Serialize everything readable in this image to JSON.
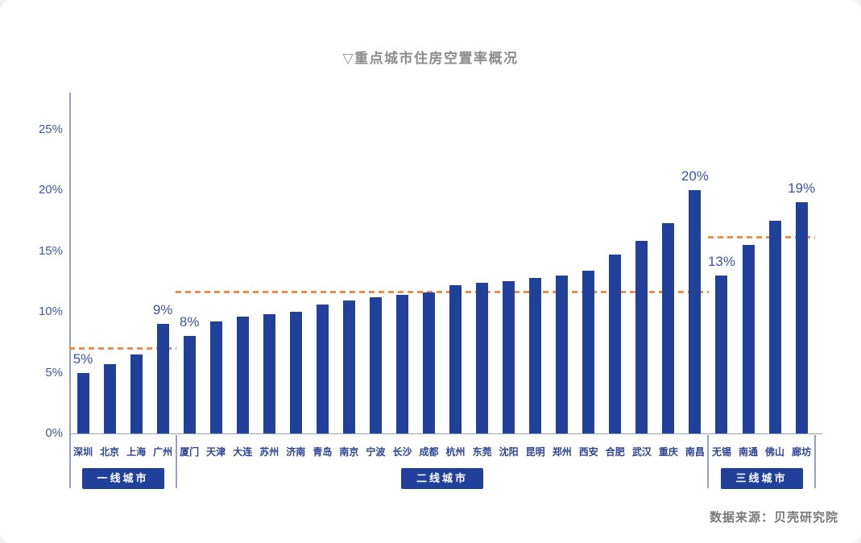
{
  "chart_data": {
    "type": "bar",
    "title": "▽重点城市住房空置率概况",
    "source": "数据来源：贝壳研究院",
    "y_ticks": [
      "0%",
      "5%",
      "10%",
      "15%",
      "20%",
      "25%"
    ],
    "y_tick_values": [
      0,
      5,
      10,
      15,
      20,
      25
    ],
    "ylim": [
      0,
      25
    ],
    "grid": false,
    "legend": "none",
    "categories": [
      "深圳",
      "北京",
      "上海",
      "广州",
      "厦门",
      "天津",
      "大连",
      "苏州",
      "济南",
      "青岛",
      "南京",
      "宁波",
      "长沙",
      "成都",
      "杭州",
      "东莞",
      "沈阳",
      "昆明",
      "郑州",
      "西安",
      "合肥",
      "武汉",
      "重庆",
      "南昌",
      "无锡",
      "南通",
      "佛山",
      "廊坊"
    ],
    "values": [
      5,
      5.7,
      6.5,
      9,
      8,
      9.2,
      9.6,
      9.8,
      10,
      10.6,
      10.9,
      11.2,
      11.4,
      11.6,
      12.2,
      12.4,
      12.5,
      12.8,
      13,
      13.4,
      14.7,
      15.8,
      17.3,
      20,
      13,
      15.5,
      17.5,
      19
    ],
    "value_labels": [
      "5%",
      "",
      "",
      "9%",
      "8%",
      "",
      "",
      "",
      "",
      "",
      "",
      "",
      "",
      "",
      "",
      "",
      "",
      "",
      "",
      "",
      "",
      "",
      "",
      "20%",
      "13%",
      "",
      "",
      "19%"
    ],
    "groups": [
      {
        "label": "一线城市",
        "start_index": 0,
        "end_index": 3,
        "average_line_value": 7
      },
      {
        "label": "二线城市",
        "start_index": 4,
        "end_index": 23,
        "average_line_value": 11.6
      },
      {
        "label": "三线城市",
        "start_index": 24,
        "end_index": 27,
        "average_line_value": 16.1
      }
    ],
    "colors": {
      "bar": "#21409a",
      "badge_background": "#21409a",
      "average_line": "#ee8c4b",
      "axis": "#94a1cf",
      "tick_text": "#3f57a8",
      "city_text": "#2e4596",
      "title_text": "#8c8c8c",
      "source_text": "#787878"
    }
  }
}
